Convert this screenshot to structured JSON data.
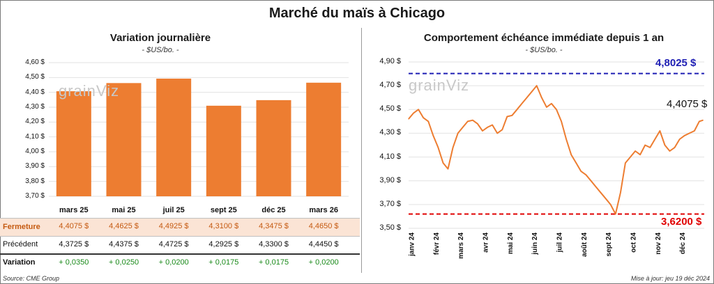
{
  "title": "Marché du maïs à Chicago",
  "left_panel": {
    "title": "Variation journalière",
    "subtitle": "- $US/bo. -",
    "watermark": "grainViz",
    "table": {
      "rows": [
        {
          "label": "Fermeture",
          "values": [
            "4,4075  $",
            "4,4625  $",
            "4,4925  $",
            "4,3100  $",
            "4,3475  $",
            "4,4650  $"
          ]
        },
        {
          "label": "Précédent",
          "values": [
            "4,3725  $",
            "4,4375  $",
            "4,4725  $",
            "4,2925  $",
            "4,3300  $",
            "4,4450  $"
          ]
        },
        {
          "label": "Variation",
          "values": [
            "+ 0,0350",
            "+ 0,0250",
            "+ 0,0200",
            "+ 0,0175",
            "+ 0,0175",
            "+ 0,0200"
          ]
        }
      ]
    }
  },
  "right_panel": {
    "title": "Comportement  échéance immédiate depuis 1 an",
    "subtitle": "- $US/bo. -",
    "watermark": "grainViz",
    "max_label": "4,8025 $",
    "min_label": "3,6200 $",
    "last_label": "4,4075 $"
  },
  "footer": {
    "source": "Source: CME Group",
    "update": "Mise à jour: jeu 19 déc 2024"
  },
  "colors": {
    "bar": "#ed7d31",
    "line": "#ed7d31",
    "max": "#1f1fb4",
    "min": "#e00000",
    "gain": "#1a8a1a",
    "fermeture_row": "#fbe4d5"
  },
  "chart_data": [
    {
      "type": "bar",
      "title": "Variation journalière",
      "categories": [
        "mars 25",
        "mai 25",
        "juil 25",
        "sept 25",
        "déc 25",
        "mars 26"
      ],
      "values": [
        4.4075,
        4.4625,
        4.4925,
        4.31,
        4.3475,
        4.465
      ],
      "ylim": [
        3.7,
        4.6
      ],
      "yticks": [
        "3,70 $",
        "3,80 $",
        "3,90 $",
        "4,00 $",
        "4,10 $",
        "4,20 $",
        "4,30 $",
        "4,40 $",
        "4,50 $",
        "4,60 $"
      ],
      "grid": true
    },
    {
      "type": "line",
      "title": "Comportement  échéance immédiate depuis 1 an",
      "x_labels": [
        "janv 24",
        "févr 24",
        "mars 24",
        "avr 24",
        "mai 24",
        "juin 24",
        "juil 24",
        "août 24",
        "sept 24",
        "oct 24",
        "nov 24",
        "déc 24"
      ],
      "ylim": [
        3.5,
        4.9
      ],
      "yticks": [
        "3,50 $",
        "3,70 $",
        "3,90 $",
        "4,10 $",
        "4,30 $",
        "4,50 $",
        "4,70 $",
        "4,90 $"
      ],
      "max_line": 4.8025,
      "min_line": 3.62,
      "last": 4.4075,
      "grid": true,
      "x": [
        0,
        0.2,
        0.4,
        0.6,
        0.8,
        1.0,
        1.2,
        1.4,
        1.6,
        1.8,
        2.0,
        2.2,
        2.4,
        2.6,
        2.8,
        3.0,
        3.2,
        3.4,
        3.6,
        3.8,
        4.0,
        4.2,
        4.4,
        4.6,
        4.8,
        5.0,
        5.2,
        5.4,
        5.6,
        5.8,
        6.0,
        6.2,
        6.4,
        6.6,
        6.8,
        7.0,
        7.2,
        7.4,
        7.6,
        7.8,
        8.0,
        8.2,
        8.4,
        8.6,
        8.8,
        9.0,
        9.2,
        9.4,
        9.6,
        9.8,
        10.0,
        10.2,
        10.4,
        10.6,
        10.8,
        11.0,
        11.2,
        11.4,
        11.6,
        11.8,
        11.95
      ],
      "y": [
        4.42,
        4.47,
        4.5,
        4.43,
        4.4,
        4.28,
        4.18,
        4.05,
        4.0,
        4.18,
        4.3,
        4.35,
        4.4,
        4.41,
        4.38,
        4.32,
        4.35,
        4.37,
        4.3,
        4.33,
        4.44,
        4.45,
        4.5,
        4.55,
        4.6,
        4.65,
        4.7,
        4.6,
        4.52,
        4.55,
        4.5,
        4.4,
        4.25,
        4.12,
        4.05,
        3.98,
        3.95,
        3.9,
        3.85,
        3.8,
        3.75,
        3.7,
        3.62,
        3.8,
        4.05,
        4.1,
        4.15,
        4.12,
        4.2,
        4.18,
        4.25,
        4.32,
        4.2,
        4.15,
        4.18,
        4.25,
        4.28,
        4.3,
        4.32,
        4.4,
        4.41
      ]
    }
  ]
}
